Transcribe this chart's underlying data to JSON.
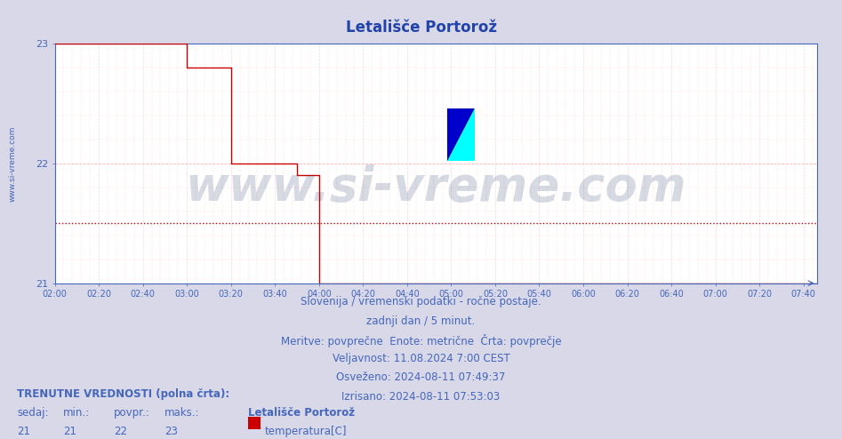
{
  "title": "Letališče Portorož",
  "title_color": "#2244aa",
  "title_fontsize": 12,
  "bg_color": "#d8d8e8",
  "plot_bg_color": "#ffffff",
  "xlim_minutes": [
    0,
    346
  ],
  "ylim": [
    21,
    23
  ],
  "yticks": [
    21,
    22,
    23
  ],
  "xtick_labels": [
    "02:00",
    "02:20",
    "02:40",
    "03:00",
    "03:20",
    "03:40",
    "04:00",
    "04:20",
    "04:40",
    "05:00",
    "05:20",
    "05:40",
    "06:00",
    "06:20",
    "06:40",
    "07:00",
    "07:20",
    "07:40"
  ],
  "xtick_positions": [
    0,
    20,
    40,
    60,
    80,
    100,
    120,
    140,
    160,
    180,
    200,
    220,
    240,
    260,
    280,
    300,
    320,
    340
  ],
  "line_color": "#cc0000",
  "line_width": 1.0,
  "grid_major_color": "#ffaaaa",
  "grid_minor_color": "#ffcccc",
  "axis_color": "#4466bb",
  "tick_color": "#4466bb",
  "avg_line_y": 21.5,
  "avg_line_color": "#cc0000",
  "temperature_data_x": [
    0,
    60,
    60,
    80,
    80,
    110,
    110,
    120,
    120,
    346
  ],
  "temperature_data_y": [
    23,
    23,
    22.8,
    22.8,
    22.0,
    22.0,
    21.9,
    21.9,
    21.0,
    21.0
  ],
  "drop_x": 120,
  "watermark_text": "www.si-vreme.com",
  "watermark_color": "#1a3366",
  "watermark_alpha": 0.18,
  "watermark_fontsize": 38,
  "sub_text_lines": [
    "Slovenija / vremenski podatki - ročne postaje.",
    "zadnji dan / 5 minut.",
    "Meritve: povprečne  Enote: metrične  Črta: povprečje",
    "Veljavnost: 11.08.2024 7:00 CEST",
    "Osveženo: 2024-08-11 07:49:37",
    "Izrisano: 2024-08-11 07:53:03"
  ],
  "sub_text_color": "#4466bb",
  "sub_text_fontsize": 8.5,
  "footer_label1": "TRENUTNE VREDNOSTI (polna črta):",
  "footer_cols": [
    "sedaj:",
    "min.:",
    "povpr.:",
    "maks.:"
  ],
  "footer_vals": [
    "21",
    "21",
    "22",
    "23"
  ],
  "footer_station": "Letališče Portorož",
  "footer_series": "temperatura[C]",
  "footer_swatch_color": "#cc0000",
  "footer_color": "#4466bb",
  "footer_fontsize": 8.5,
  "ylabel_text": "www.si-vreme.com",
  "ylabel_color": "#4466bb",
  "ylabel_fontsize": 6.5
}
